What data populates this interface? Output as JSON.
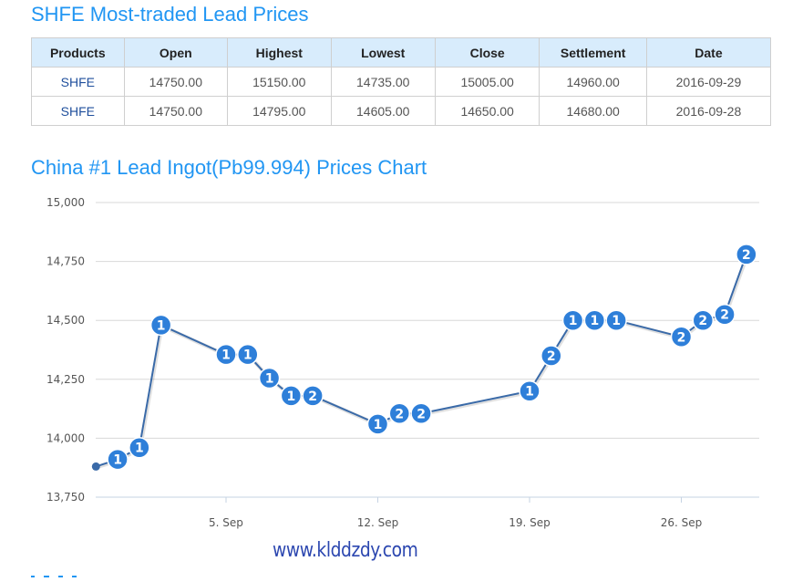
{
  "section1": {
    "title": "SHFE Most-traded Lead Prices",
    "table": {
      "headers": [
        "Products",
        "Open",
        "Highest",
        "Lowest",
        "Close",
        "Settlement",
        "Date"
      ],
      "rows": [
        [
          "SHFE",
          "14750.00",
          "15150.00",
          "14735.00",
          "15005.00",
          "14960.00",
          "2016-09-29"
        ],
        [
          "SHFE",
          "14750.00",
          "14795.00",
          "14605.00",
          "14650.00",
          "14680.00",
          "2016-09-28"
        ]
      ]
    }
  },
  "section2": {
    "title": "China #1 Lead Ingot(Pb99.994) Prices Chart"
  },
  "watermark": "www.klddzdy.com",
  "colors": {
    "title": "#2196f3",
    "header_bg": "#d8ecfc",
    "line": "#3a6aa8",
    "flag": "#2e7fd9",
    "grid": "#d8d8d8"
  },
  "chart_data": {
    "type": "line",
    "title": "China #1 Lead Ingot(Pb99.994) Prices Chart",
    "xlabel": "",
    "ylabel": "",
    "ylim": [
      13750,
      15000
    ],
    "yticks": [
      "13,750",
      "14,000",
      "14,250",
      "14,500",
      "14,750",
      "15,000"
    ],
    "xticks": [
      "5. Sep",
      "12. Sep",
      "19. Sep",
      "26. Sep"
    ],
    "grid": true,
    "legend": "none",
    "series": [
      {
        "name": "Lead Ingot Pb99.994",
        "x": [
          "2016-08-30",
          "2016-08-31",
          "2016-09-01",
          "2016-09-02",
          "2016-09-05",
          "2016-09-06",
          "2016-09-07",
          "2016-09-08",
          "2016-09-09",
          "2016-09-12",
          "2016-09-13",
          "2016-09-14",
          "2016-09-19",
          "2016-09-20",
          "2016-09-21",
          "2016-09-22",
          "2016-09-23",
          "2016-09-26",
          "2016-09-27",
          "2016-09-28",
          "2016-09-29"
        ],
        "values": [
          13880,
          13910,
          13960,
          14480,
          14355,
          14355,
          14255,
          14180,
          14180,
          14060,
          14105,
          14105,
          14200,
          14350,
          14500,
          14500,
          14500,
          14430,
          14500,
          14525,
          14780
        ],
        "flags": [
          "",
          "1",
          "1",
          "1",
          "1",
          "1",
          "1",
          "1",
          "2",
          "1",
          "2",
          "2",
          "1",
          "2",
          "1",
          "1",
          "1",
          "2",
          "2",
          "2",
          "2"
        ]
      }
    ]
  }
}
